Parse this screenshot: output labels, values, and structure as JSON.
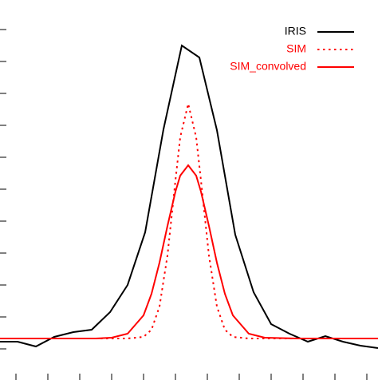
{
  "chart_data": {
    "type": "line",
    "x": [
      0,
      22,
      45,
      68,
      92,
      115,
      138,
      160,
      182,
      205,
      228,
      250,
      272,
      295,
      318,
      340,
      363,
      386,
      408,
      430,
      452,
      474
    ],
    "series": [
      {
        "name": "IRIS",
        "color": "#000000",
        "style": "solid",
        "x": [
          0,
          22,
          45,
          68,
          92,
          115,
          138,
          160,
          182,
          205,
          228,
          250,
          272,
          295,
          318,
          340,
          363,
          386,
          408,
          430,
          452,
          474
        ],
        "values": [
          48,
          48,
          42,
          54,
          60,
          63,
          85,
          119,
          185,
          314,
          419,
          404,
          313,
          182,
          110,
          70,
          58,
          48,
          55,
          48,
          43,
          40
        ]
      },
      {
        "name": "SIM",
        "color": "#ff0000",
        "style": "dotted",
        "x": [
          0,
          40,
          80,
          120,
          140,
          160,
          180,
          190,
          200,
          210,
          220,
          226,
          236,
          246,
          252,
          262,
          272,
          282,
          292,
          312,
          332,
          372,
          420,
          474
        ],
        "values": [
          52,
          52,
          52,
          52,
          52,
          52,
          54,
          63,
          92,
          156,
          250,
          304,
          346,
          304,
          250,
          156,
          92,
          63,
          54,
          52,
          52,
          52,
          52,
          52
        ]
      },
      {
        "name": "SIM_convolved",
        "color": "#ff0000",
        "style": "solid",
        "x": [
          0,
          40,
          80,
          120,
          140,
          160,
          180,
          190,
          200,
          210,
          220,
          226,
          236,
          246,
          252,
          262,
          272,
          282,
          292,
          312,
          332,
          372,
          420,
          474
        ],
        "values": [
          52,
          52,
          52,
          52,
          53,
          58,
          81,
          108,
          147,
          193,
          236,
          256,
          269,
          256,
          236,
          193,
          147,
          108,
          81,
          58,
          53,
          52,
          52,
          52
        ]
      }
    ],
    "xlim": [
      0,
      474
    ],
    "ylim": [
      0,
      476
    ],
    "xticks": [
      20,
      60,
      100,
      140,
      180,
      220,
      260,
      300,
      340,
      380,
      420,
      460
    ],
    "yticks": [
      39,
      79,
      119,
      159,
      199,
      239,
      279,
      319,
      359,
      399,
      439
    ],
    "legend": "upper right"
  }
}
